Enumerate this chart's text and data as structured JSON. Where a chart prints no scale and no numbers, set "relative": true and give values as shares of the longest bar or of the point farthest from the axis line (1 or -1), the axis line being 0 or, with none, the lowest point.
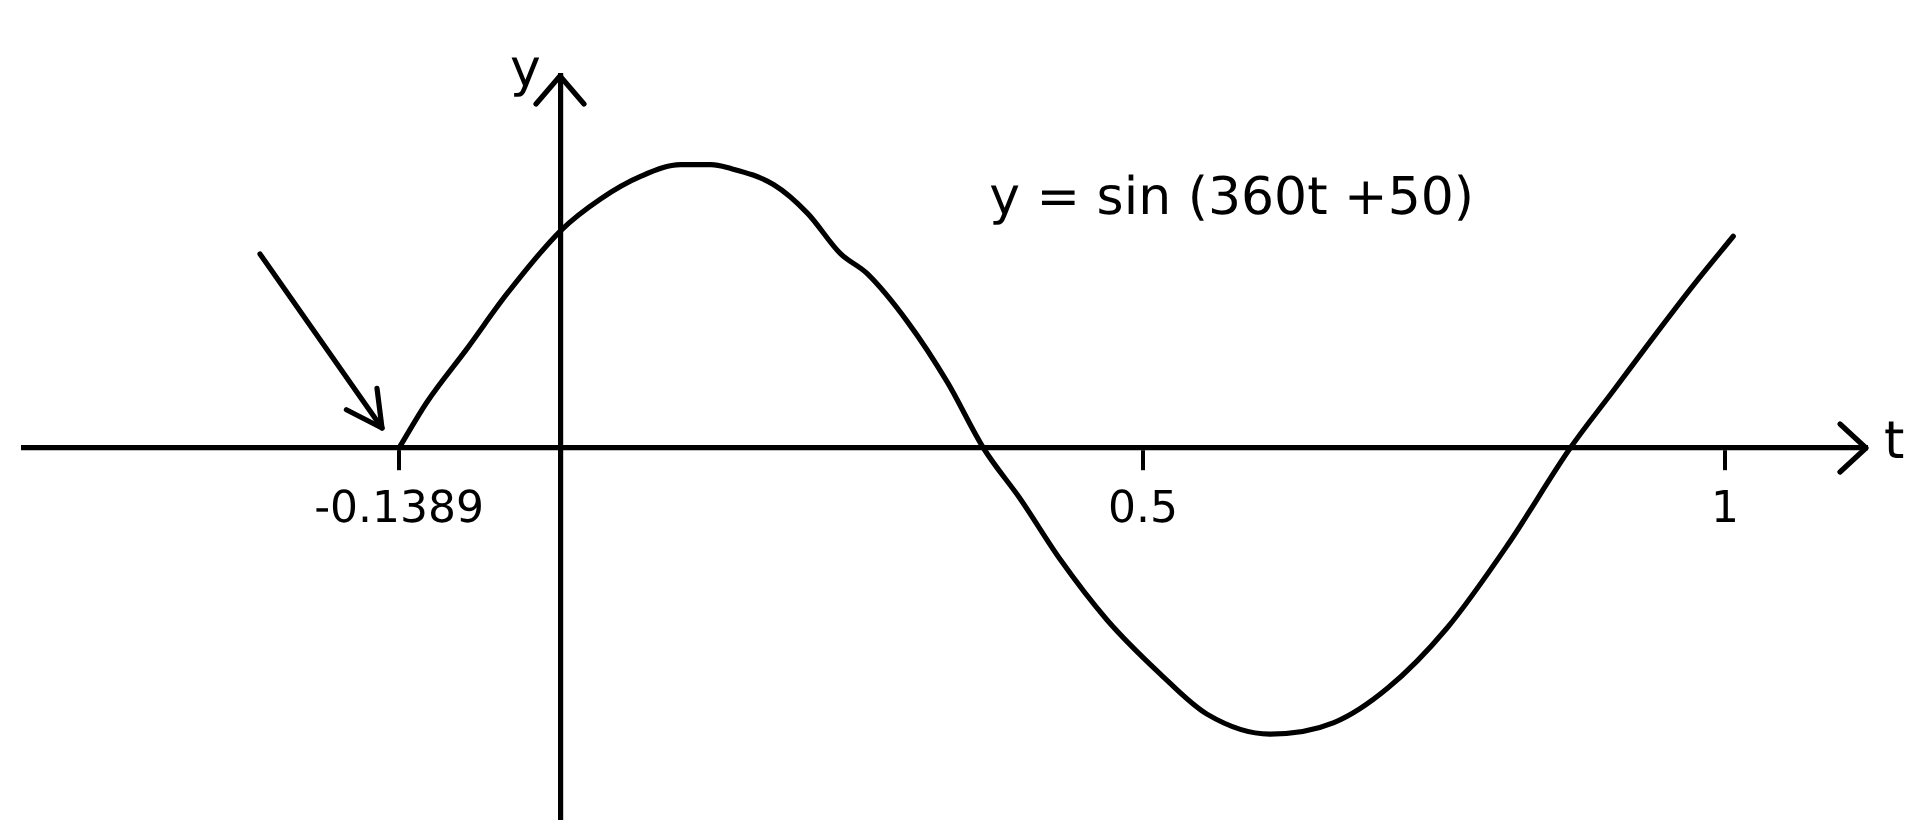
{
  "chart_data": {
    "type": "line",
    "relative": true,
    "xlabel": "t",
    "ylabel": "y",
    "annotations": [
      "y = sin (360t +50)"
    ],
    "xlim": [
      -0.461,
      1.121
    ],
    "xticks": [
      -0.1389,
      0.5,
      1
    ],
    "x": [
      -0.1389,
      -0.115,
      -0.08,
      -0.046,
      0,
      0.034,
      0.069,
      0.103,
      0.129,
      0.143,
      0.183,
      0.212,
      0.24,
      0.263,
      0.298,
      0.332,
      0.363,
      0.395,
      0.429,
      0.469,
      0.515,
      0.555,
      0.609,
      0.664,
      0.71,
      0.761,
      0.813,
      0.867,
      0.904,
      0.939,
      0.973,
      1.007
    ],
    "values": [
      0,
      0.16,
      0.35,
      0.54,
      0.76,
      0.87,
      0.95,
      0.99,
      0.99,
      0.98,
      0.92,
      0.82,
      0.68,
      0.61,
      0.44,
      0.23,
      0,
      -0.18,
      -0.39,
      -0.6,
      -0.79,
      -0.93,
      -1,
      -0.96,
      -0.84,
      -0.63,
      -0.34,
      0,
      0.2,
      0.39,
      0.57,
      0.74
    ],
    "color": "#000000"
  }
}
